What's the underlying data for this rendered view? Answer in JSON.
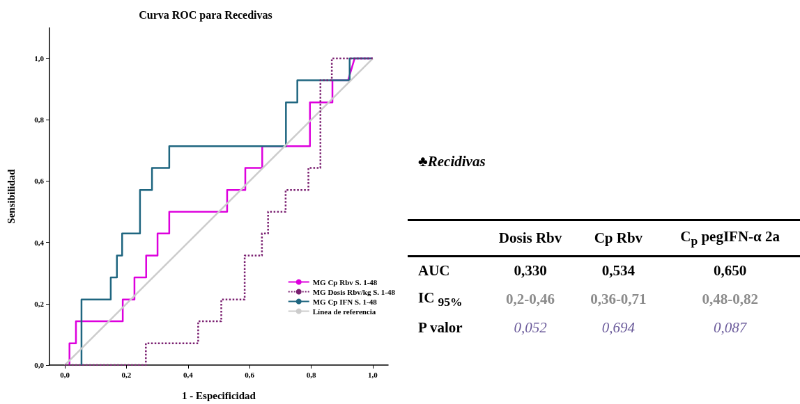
{
  "chart_data": [
    {
      "type": "line",
      "title": "Curva ROC para Recedivas",
      "xlabel": "1 - Especificidad",
      "ylabel": "Sensibilidad",
      "xlim": [
        -0.05,
        1.05
      ],
      "ylim": [
        0,
        1.1
      ],
      "xticks": [
        {
          "value": 0,
          "label": "0,0"
        },
        {
          "value": 0.2,
          "label": "0,2"
        },
        {
          "value": 0.4,
          "label": "0,4"
        },
        {
          "value": 0.6,
          "label": "0,6"
        },
        {
          "value": 0.8,
          "label": "0,8"
        },
        {
          "value": 1,
          "label": "1,0"
        }
      ],
      "yticks": [
        {
          "value": 0,
          "label": "0,0"
        },
        {
          "value": 0.2,
          "label": "0,2"
        },
        {
          "value": 0.4,
          "label": "0,4"
        },
        {
          "value": 0.6,
          "label": "0,6"
        },
        {
          "value": 0.8,
          "label": "0,8"
        },
        {
          "value": 1,
          "label": "1,0"
        }
      ],
      "grid": false,
      "legend": "bottom right",
      "marker": "none",
      "series": [
        {
          "name": "MG Cp Rbv S. 1-48",
          "color": "#dd00dd",
          "line_style": "solid",
          "x": [
            0.015,
            0.015,
            0.036,
            0.036,
            0.188,
            0.188,
            0.226,
            0.226,
            0.264,
            0.264,
            0.301,
            0.301,
            0.339,
            0.339,
            0.527,
            0.527,
            0.586,
            0.586,
            0.641,
            0.641,
            0.796,
            0.796,
            0.869,
            0.869,
            0.92,
            0.941,
            1
          ],
          "values": [
            0,
            0.071,
            0.071,
            0.143,
            0.143,
            0.214,
            0.214,
            0.286,
            0.286,
            0.357,
            0.357,
            0.429,
            0.429,
            0.5,
            0.5,
            0.571,
            0.571,
            0.643,
            0.643,
            0.714,
            0.714,
            0.857,
            0.857,
            0.929,
            0.929,
            1,
            1
          ]
        },
        {
          "name": "MG Dosis Rbv/kg S. 1-48",
          "color": "#7a1f70",
          "line_style": "dotted",
          "x": [
            0,
            0.263,
            0.263,
            0.433,
            0.433,
            0.508,
            0.508,
            0.584,
            0.584,
            0.64,
            0.64,
            0.66,
            0.66,
            0.717,
            0.717,
            0.791,
            0.791,
            0.83,
            0.83,
            0.867,
            0.867,
            1
          ],
          "values": [
            0,
            0,
            0.071,
            0.071,
            0.143,
            0.143,
            0.214,
            0.214,
            0.357,
            0.357,
            0.429,
            0.429,
            0.5,
            0.5,
            0.571,
            0.571,
            0.643,
            0.643,
            0.929,
            0.929,
            1,
            1
          ]
        },
        {
          "name": "MG Cp IFN S. 1-48",
          "color": "#1f6680",
          "line_style": "solid",
          "x": [
            0.054,
            0.054,
            0.149,
            0.149,
            0.169,
            0.169,
            0.186,
            0.186,
            0.244,
            0.244,
            0.283,
            0.283,
            0.339,
            0.339,
            0.718,
            0.718,
            0.755,
            0.755,
            0.925,
            0.925,
            1
          ],
          "values": [
            0,
            0.214,
            0.214,
            0.286,
            0.286,
            0.357,
            0.357,
            0.429,
            0.429,
            0.571,
            0.571,
            0.643,
            0.643,
            0.714,
            0.714,
            0.857,
            0.857,
            0.929,
            0.929,
            1,
            1
          ]
        },
        {
          "name": "Línea de referencia",
          "color": "#cccccc",
          "line_style": "solid",
          "x": [
            0,
            1
          ],
          "values": [
            0,
            1
          ]
        }
      ]
    },
    {
      "type": "other",
      "title": "♣Recidivas",
      "categories": [
        "Dosis Rbv",
        "Cp Rbv",
        "C$_{p}$ pegIFN-α 2a"
      ],
      "y_categories": [
        "AUC",
        "IC $_{95%}$",
        "P valor"
      ],
      "colors": [
        "#000000",
        "#8c8c8c",
        "#6a5a9a"
      ],
      "cell_labels": [
        [
          "0,330",
          "0,534",
          "0,650"
        ],
        [
          "0,2-0,46",
          "0,36-0,71",
          "0,48-0,82"
        ],
        [
          "0,052",
          "0,694",
          "0,087"
        ]
      ]
    }
  ]
}
